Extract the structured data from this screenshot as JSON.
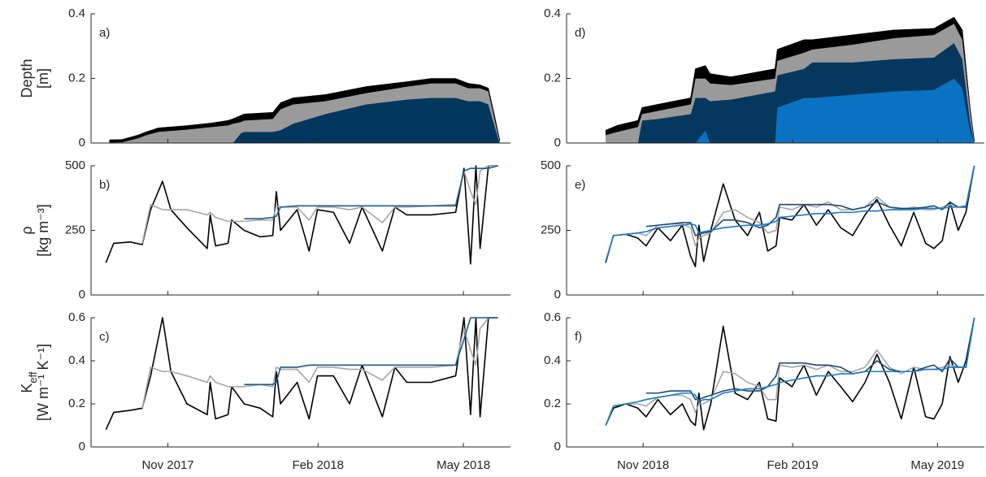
{
  "chart_data": [
    {
      "type": "area",
      "label": "a)",
      "ylabel": "Depth",
      "ylabel_unit": "[m]",
      "x": [
        2017.735,
        2017.756,
        2017.783,
        2017.797,
        2017.817,
        2017.865,
        2017.906,
        2017.934,
        2017.942,
        2017.955,
        2017.961,
        2018.009,
        2018.022,
        2018.043,
        2018.097,
        2018.166,
        2018.234,
        2018.275,
        2018.316,
        2018.337,
        2018.357,
        2018.371,
        2018.382,
        2018.39
      ],
      "series": [
        {
          "color": "#02375d",
          "values": [
            0,
            0,
            0,
            0,
            0,
            0,
            0,
            0,
            0,
            0.03,
            0.035,
            0.035,
            0.04,
            0.06,
            0.09,
            0.12,
            0.135,
            0.14,
            0.14,
            0.13,
            0.13,
            0.12,
            0.05,
            0
          ]
        },
        {
          "color": "#9a9a9a",
          "values": [
            0.002,
            0.003,
            0.015,
            0.025,
            0.035,
            0.042,
            0.05,
            0.055,
            0.06,
            0.035,
            0.035,
            0.04,
            0.065,
            0.06,
            0.04,
            0.035,
            0.04,
            0.045,
            0.045,
            0.04,
            0.04,
            0.04,
            0.02,
            0.005
          ]
        },
        {
          "color": "#000000",
          "values": [
            0.008,
            0.008,
            0.01,
            0.01,
            0.012,
            0.012,
            0.012,
            0.015,
            0.015,
            0.02,
            0.02,
            0.02,
            0.02,
            0.02,
            0.02,
            0.02,
            0.015,
            0.015,
            0.015,
            0.015,
            0.01,
            0.01,
            0.01,
            0.005
          ]
        }
      ],
      "xlim": [
        2017.704,
        2018.408
      ],
      "xticks": [
        2017.833,
        2018.085,
        2018.329
      ],
      "ylim": [
        0,
        0.4
      ],
      "yticks": [
        0,
        0.2,
        0.4
      ]
    },
    {
      "type": "line",
      "label": "b)",
      "ylabel": "ρ",
      "ylabel_unit": "[kg m⁻³]",
      "x": [
        2017.729,
        2017.742,
        2017.77,
        2017.79,
        2017.804,
        2017.824,
        2017.838,
        2017.865,
        2017.899,
        2017.904,
        2017.913,
        2017.934,
        2017.94,
        2017.961,
        2017.988,
        2018.009,
        2018.015,
        2018.022,
        2018.05,
        2018.07,
        2018.084,
        2018.111,
        2018.138,
        2018.159,
        2018.193,
        2018.214,
        2018.234,
        2018.275,
        2018.316,
        2018.33,
        2018.341,
        2018.35,
        2018.357,
        2018.371,
        2018.387
      ],
      "series": [
        {
          "color": "#000000",
          "values": [
            125,
            200,
            205,
            195,
            330,
            440,
            330,
            260,
            180,
            310,
            190,
            200,
            290,
            250,
            225,
            230,
            400,
            250,
            330,
            170,
            330,
            320,
            200,
            340,
            170,
            340,
            310,
            310,
            320,
            490,
            120,
            500,
            180,
            500,
            500
          ]
        },
        {
          "color": "#a6a6a6",
          "values": [
            null,
            null,
            null,
            200,
            350,
            330,
            330,
            330,
            310,
            320,
            300,
            285,
            285,
            285,
            290,
            290,
            345,
            340,
            340,
            290,
            340,
            340,
            330,
            340,
            280,
            340,
            340,
            345,
            350,
            480,
            400,
            350,
            480,
            500,
            500
          ]
        },
        {
          "color": "#1f5a8c",
          "values": [
            null,
            null,
            null,
            null,
            null,
            null,
            null,
            null,
            null,
            null,
            null,
            null,
            null,
            295,
            295,
            300,
            305,
            340,
            345,
            345,
            345,
            345,
            345,
            345,
            345,
            345,
            345,
            345,
            345,
            480,
            490,
            490,
            490,
            490,
            500
          ]
        }
      ],
      "xlim": [
        2017.704,
        2018.408
      ],
      "xticks": [
        2017.833,
        2018.085,
        2018.329
      ],
      "ylim": [
        0,
        500
      ],
      "yticks": [
        0,
        250,
        500
      ]
    },
    {
      "type": "line",
      "label": "c)",
      "ylabel": "K",
      "ylabel_sub": "eff",
      "ylabel_unit": "[W m⁻¹ K⁻¹]",
      "x": [
        2017.729,
        2017.742,
        2017.77,
        2017.79,
        2017.804,
        2017.824,
        2017.838,
        2017.865,
        2017.899,
        2017.904,
        2017.913,
        2017.934,
        2017.94,
        2017.961,
        2017.988,
        2018.009,
        2018.015,
        2018.022,
        2018.05,
        2018.07,
        2018.084,
        2018.111,
        2018.138,
        2018.159,
        2018.193,
        2018.214,
        2018.234,
        2018.275,
        2018.316,
        2018.33,
        2018.341,
        2018.35,
        2018.357,
        2018.371,
        2018.387
      ],
      "series": [
        {
          "color": "#000000",
          "values": [
            0.08,
            0.16,
            0.17,
            0.18,
            0.33,
            0.6,
            0.35,
            0.2,
            0.15,
            0.3,
            0.13,
            0.15,
            0.28,
            0.2,
            0.18,
            0.14,
            0.35,
            0.2,
            0.3,
            0.13,
            0.33,
            0.33,
            0.2,
            0.38,
            0.14,
            0.37,
            0.3,
            0.3,
            0.33,
            0.6,
            0.15,
            0.6,
            0.14,
            0.6,
            0.6
          ]
        },
        {
          "color": "#a6a6a6",
          "values": [
            null,
            null,
            null,
            0.18,
            0.37,
            0.35,
            0.35,
            0.33,
            0.3,
            0.33,
            0.3,
            0.28,
            0.28,
            0.28,
            0.29,
            0.28,
            0.37,
            0.36,
            0.36,
            0.3,
            0.37,
            0.37,
            0.36,
            0.36,
            0.31,
            0.37,
            0.37,
            0.37,
            0.38,
            0.55,
            0.45,
            0.38,
            0.55,
            0.6,
            0.6
          ]
        },
        {
          "color": "#1f5a8c",
          "values": [
            null,
            null,
            null,
            null,
            null,
            null,
            null,
            null,
            null,
            null,
            null,
            null,
            null,
            0.29,
            0.29,
            0.29,
            0.3,
            0.37,
            0.37,
            0.38,
            0.38,
            0.38,
            0.38,
            0.38,
            0.38,
            0.38,
            0.38,
            0.38,
            0.38,
            0.5,
            0.6,
            0.6,
            0.6,
            0.6,
            0.6
          ]
        }
      ],
      "xlim": [
        2017.704,
        2018.408
      ],
      "xticks": [
        {
          "value": 2017.833,
          "label": "Nov 2017"
        },
        {
          "value": 2018.085,
          "label": "Feb 2018"
        },
        {
          "value": 2018.329,
          "label": "May 2018"
        }
      ],
      "ylim": [
        0,
        0.6
      ],
      "yticks": [
        0,
        0.2,
        0.4,
        0.6
      ]
    },
    {
      "type": "area",
      "label": "d)",
      "x": [
        2018.77,
        2018.79,
        2018.824,
        2018.831,
        2018.858,
        2018.913,
        2018.921,
        2018.938,
        2018.946,
        2018.981,
        2019.055,
        2019.059,
        2019.104,
        2019.118,
        2019.186,
        2019.255,
        2019.323,
        2019.357,
        2019.371,
        2019.384,
        2019.391
      ],
      "series": [
        {
          "color": "#0a72c2",
          "values": [
            0,
            0,
            0,
            0,
            0,
            0,
            0,
            0.04,
            0,
            0,
            0,
            0.11,
            0.14,
            0.14,
            0.15,
            0.16,
            0.165,
            0.2,
            0.17,
            0.04,
            0
          ]
        },
        {
          "color": "#06375f",
          "values": [
            0,
            0,
            0,
            0.07,
            0.075,
            0.09,
            0.14,
            0.1,
            0.13,
            0.135,
            0.16,
            0.1,
            0.09,
            0.11,
            0.1,
            0.1,
            0.1,
            0.11,
            0.09,
            0.03,
            0
          ]
        },
        {
          "color": "#9a9a9a",
          "values": [
            0.025,
            0.035,
            0.05,
            0.02,
            0.025,
            0.03,
            0.06,
            0.06,
            0.055,
            0.045,
            0.04,
            0.045,
            0.05,
            0.04,
            0.055,
            0.065,
            0.07,
            0.06,
            0.06,
            0.03,
            0.005
          ]
        },
        {
          "color": "#000000",
          "values": [
            0.015,
            0.02,
            0.02,
            0.02,
            0.02,
            0.02,
            0.03,
            0.04,
            0.03,
            0.025,
            0.03,
            0.035,
            0.04,
            0.03,
            0.03,
            0.025,
            0.02,
            0.02,
            0.03,
            0.01,
            0.005
          ]
        }
      ],
      "xlim": [
        2018.704,
        2019.408
      ],
      "xticks": [
        2018.833,
        2019.085,
        2019.329
      ],
      "ylim": [
        0,
        0.4
      ],
      "yticks": [
        0,
        0.2,
        0.4
      ]
    },
    {
      "type": "line",
      "label": "e)",
      "x": [
        2018.77,
        2018.783,
        2018.804,
        2018.824,
        2018.838,
        2018.858,
        2018.879,
        2018.899,
        2018.913,
        2018.921,
        2018.927,
        2018.935,
        2018.947,
        2018.968,
        2018.988,
        2019.009,
        2019.029,
        2019.043,
        2019.057,
        2019.063,
        2019.084,
        2019.104,
        2019.125,
        2019.145,
        2019.166,
        2019.186,
        2019.207,
        2019.227,
        2019.248,
        2019.268,
        2019.289,
        2019.309,
        2019.323,
        2019.337,
        2019.35,
        2019.364,
        2019.377,
        2019.391
      ],
      "series": [
        {
          "color": "#000000",
          "values": [
            125,
            230,
            235,
            220,
            190,
            260,
            210,
            270,
            150,
            110,
            270,
            130,
            250,
            430,
            290,
            230,
            320,
            170,
            190,
            300,
            290,
            350,
            270,
            330,
            260,
            230,
            310,
            370,
            270,
            190,
            320,
            200,
            180,
            210,
            360,
            250,
            320,
            500
          ]
        },
        {
          "color": "#a6a6a6",
          "values": [
            130,
            230,
            235,
            240,
            230,
            270,
            275,
            275,
            260,
            190,
            220,
            230,
            240,
            320,
            330,
            300,
            280,
            240,
            250,
            340,
            330,
            350,
            340,
            360,
            330,
            330,
            340,
            380,
            340,
            330,
            340,
            330,
            330,
            340,
            350,
            340,
            340,
            500
          ]
        },
        {
          "color": "#1e4a72",
          "values": [
            null,
            null,
            null,
            null,
            265,
            270,
            275,
            280,
            280,
            230,
            235,
            240,
            245,
            290,
            290,
            280,
            260,
            270,
            300,
            350,
            350,
            350,
            350,
            350,
            345,
            330,
            340,
            360,
            340,
            335,
            335,
            340,
            345,
            330,
            360,
            340,
            340,
            500
          ]
        },
        {
          "color": "#1a7bc4",
          "values": [
            130,
            230,
            235,
            240,
            245,
            260,
            265,
            270,
            275,
            270,
            240,
            245,
            250,
            260,
            265,
            270,
            270,
            275,
            285,
            300,
            305,
            310,
            315,
            315,
            320,
            320,
            325,
            325,
            330,
            330,
            330,
            335,
            335,
            335,
            340,
            340,
            345,
            500
          ]
        }
      ],
      "xlim": [
        2018.704,
        2019.408
      ],
      "xticks": [
        2018.833,
        2019.085,
        2019.329
      ],
      "ylim": [
        0,
        500
      ],
      "yticks": [
        0,
        250,
        500
      ]
    },
    {
      "type": "line",
      "label": "f)",
      "x": [
        2018.77,
        2018.783,
        2018.804,
        2018.824,
        2018.838,
        2018.858,
        2018.879,
        2018.899,
        2018.913,
        2018.921,
        2018.927,
        2018.935,
        2018.947,
        2018.968,
        2018.988,
        2019.009,
        2019.029,
        2019.043,
        2019.057,
        2019.063,
        2019.084,
        2019.104,
        2019.125,
        2019.145,
        2019.166,
        2019.186,
        2019.207,
        2019.227,
        2019.248,
        2019.268,
        2019.289,
        2019.309,
        2019.323,
        2019.337,
        2019.35,
        2019.364,
        2019.377,
        2019.391
      ],
      "series": [
        {
          "color": "#000000",
          "values": [
            0.1,
            0.18,
            0.2,
            0.18,
            0.14,
            0.22,
            0.15,
            0.2,
            0.12,
            0.1,
            0.25,
            0.08,
            0.2,
            0.56,
            0.25,
            0.22,
            0.3,
            0.13,
            0.12,
            0.32,
            0.28,
            0.38,
            0.24,
            0.35,
            0.28,
            0.21,
            0.3,
            0.43,
            0.3,
            0.13,
            0.37,
            0.14,
            0.13,
            0.2,
            0.42,
            0.3,
            0.4,
            0.6
          ]
        },
        {
          "color": "#a6a6a6",
          "values": [
            0.1,
            0.19,
            0.2,
            0.2,
            0.19,
            0.23,
            0.24,
            0.24,
            0.22,
            0.16,
            0.2,
            0.2,
            0.22,
            0.35,
            0.34,
            0.3,
            0.28,
            0.22,
            0.22,
            0.38,
            0.37,
            0.38,
            0.36,
            0.38,
            0.35,
            0.35,
            0.37,
            0.45,
            0.37,
            0.34,
            0.37,
            0.36,
            0.36,
            0.37,
            0.38,
            0.37,
            0.37,
            0.6
          ]
        },
        {
          "color": "#1e4a72",
          "values": [
            null,
            null,
            null,
            null,
            0.25,
            0.25,
            0.26,
            0.26,
            0.26,
            0.22,
            0.22,
            0.23,
            0.24,
            0.26,
            0.27,
            0.26,
            0.26,
            0.28,
            0.33,
            0.39,
            0.39,
            0.39,
            0.38,
            0.38,
            0.37,
            0.34,
            0.35,
            0.4,
            0.36,
            0.35,
            0.35,
            0.37,
            0.38,
            0.35,
            0.41,
            0.37,
            0.37,
            0.6
          ]
        },
        {
          "color": "#1a7bc4",
          "values": [
            0.1,
            0.19,
            0.2,
            0.21,
            0.22,
            0.23,
            0.24,
            0.25,
            0.25,
            0.24,
            0.21,
            0.22,
            0.22,
            0.25,
            0.26,
            0.27,
            0.27,
            0.28,
            0.29,
            0.3,
            0.31,
            0.32,
            0.33,
            0.33,
            0.34,
            0.34,
            0.35,
            0.35,
            0.35,
            0.35,
            0.35,
            0.36,
            0.36,
            0.36,
            0.37,
            0.37,
            0.37,
            0.6
          ]
        }
      ],
      "xlim": [
        2018.704,
        2019.408
      ],
      "xticks": [
        {
          "value": 2018.833,
          "label": "Nov 2018"
        },
        {
          "value": 2019.085,
          "label": "Feb 2019"
        },
        {
          "value": 2019.329,
          "label": "May 2019"
        }
      ],
      "ylim": [
        0,
        0.6
      ],
      "yticks": [
        0,
        0.2,
        0.4,
        0.6
      ]
    }
  ]
}
